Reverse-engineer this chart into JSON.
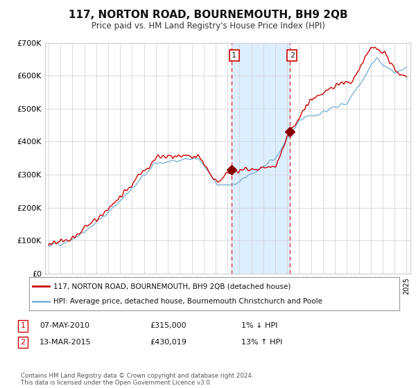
{
  "title": "117, NORTON ROAD, BOURNEMOUTH, BH9 2QB",
  "subtitle": "Price paid vs. HM Land Registry's House Price Index (HPI)",
  "legend_line1": "117, NORTON ROAD, BOURNEMOUTH, BH9 2QB (detached house)",
  "legend_line2": "HPI: Average price, detached house, Bournemouth Christchurch and Poole",
  "table_row1": [
    "1",
    "07-MAY-2010",
    "£315,000",
    "1% ↓ HPI"
  ],
  "table_row2": [
    "2",
    "13-MAR-2015",
    "£430,019",
    "13% ↑ HPI"
  ],
  "footnote": "Contains HM Land Registry data © Crown copyright and database right 2024.\nThis data is licensed under the Open Government Licence v3.0.",
  "sale1_year": 2010.35,
  "sale2_year": 2015.2,
  "sale1_price": 315000,
  "sale2_price": 430019,
  "ylim": [
    0,
    700000
  ],
  "xlim_start": 1995,
  "xlim_end": 2025,
  "hpi_color": "#7ab4d8",
  "price_color": "#cc0000",
  "sale_dot_color": "#cc0000",
  "highlight_color": "#ddeeff",
  "grid_color": "#cccccc",
  "background_color": "#ffffff"
}
